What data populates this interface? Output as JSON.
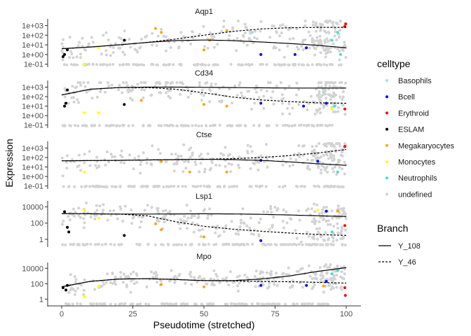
{
  "chart_data": {
    "type": "scatter",
    "xlabel": "Pseudotime (stretched)",
    "ylabel": "Expression",
    "x_ticks": [
      "0",
      "25",
      "50",
      "75",
      "100"
    ],
    "x_tick_values": [
      0,
      25,
      50,
      75,
      100
    ],
    "xlim": [
      0,
      100
    ],
    "y_scale": "log10",
    "legend_celltype": {
      "title": "celltype",
      "entries": [
        {
          "label": "Basophils",
          "color": "#add8e6"
        },
        {
          "label": "Bcell",
          "color": "#0000ff"
        },
        {
          "label": "Erythroid",
          "color": "#ff0000"
        },
        {
          "label": "ESLAM",
          "color": "#000000"
        },
        {
          "label": "Megakaryocytes",
          "color": "#ffa500"
        },
        {
          "label": "Monocytes",
          "color": "#ffff00"
        },
        {
          "label": "Neutrophils",
          "color": "#40e0d0"
        },
        {
          "label": "undefined",
          "color": "#d3d3d3"
        }
      ]
    },
    "legend_branch": {
      "title": "Branch",
      "entries": [
        {
          "label": "Y_108",
          "linestyle": "solid"
        },
        {
          "label": "Y_46",
          "linestyle": "dashed"
        }
      ]
    },
    "panels": [
      {
        "title": "Aqp1",
        "y_ticks": [
          "1e+03",
          "1e+02",
          "1e+01",
          "1e+00",
          "1e-01"
        ],
        "y_tick_values": [
          1000,
          100,
          10,
          1,
          0.1
        ],
        "ylim": [
          0.08,
          3000
        ],
        "curves": [
          {
            "branch": "Y_108",
            "x": [
              0,
              10,
              20,
              30,
              40,
              50,
              60,
              70,
              80,
              90,
              100
            ],
            "y": [
              4,
              6,
              10,
              18,
              28,
              32,
              28,
              20,
              14,
              9,
              5
            ]
          },
          {
            "branch": "Y_46",
            "x": [
              0,
              10,
              20,
              30,
              40,
              50,
              60,
              70,
              80,
              90,
              100
            ],
            "y": [
              4,
              6,
              10,
              18,
              40,
              100,
              250,
              450,
              600,
              650,
              650
            ]
          }
        ],
        "points": [
          {
            "x": 1,
            "y": 1,
            "celltype": "ESLAM"
          },
          {
            "x": 2,
            "y": 3,
            "celltype": "ESLAM"
          },
          {
            "x": 0.5,
            "y": 0.6,
            "celltype": "ESLAM"
          },
          {
            "x": 22,
            "y": 30,
            "celltype": "ESLAM"
          },
          {
            "x": 33,
            "y": 500,
            "celltype": "Megakaryocytes"
          },
          {
            "x": 35,
            "y": 200,
            "celltype": "Megakaryocytes"
          },
          {
            "x": 50,
            "y": 3,
            "celltype": "Megakaryocytes"
          },
          {
            "x": 52,
            "y": 30,
            "celltype": "Megakaryocytes"
          },
          {
            "x": 58,
            "y": 300,
            "celltype": "Megakaryocytes"
          },
          {
            "x": 13,
            "y": 5,
            "celltype": "Monocytes"
          },
          {
            "x": 8,
            "y": 0.1,
            "celltype": "Monocytes"
          },
          {
            "x": 70,
            "y": 1,
            "celltype": "Bcell"
          },
          {
            "x": 82,
            "y": 1,
            "celltype": "Bcell"
          },
          {
            "x": 86,
            "y": 5,
            "celltype": "Bcell"
          },
          {
            "x": 95,
            "y": 30,
            "celltype": "Neutrophils"
          },
          {
            "x": 98,
            "y": 1,
            "celltype": "Neutrophils"
          },
          {
            "x": 97,
            "y": 200,
            "celltype": "Neutrophils"
          },
          {
            "x": 67,
            "y": 200,
            "celltype": "Basophils"
          },
          {
            "x": 99.5,
            "y": 800,
            "celltype": "Erythroid"
          },
          {
            "x": 99.8,
            "y": 1500,
            "celltype": "Erythroid"
          }
        ]
      },
      {
        "title": "Cd34",
        "y_ticks": [
          "1e+03",
          "1e+02",
          "1e+01",
          "1e+00",
          "1e-01"
        ],
        "y_tick_values": [
          1000,
          100,
          10,
          1,
          0.1
        ],
        "ylim": [
          0.08,
          3000
        ],
        "curves": [
          {
            "branch": "Y_108",
            "x": [
              0,
              10,
              20,
              30,
              40,
              50,
              60,
              70,
              80,
              90,
              100
            ],
            "y": [
              150,
              600,
              900,
              1000,
              1000,
              950,
              900,
              850,
              800,
              800,
              800
            ]
          },
          {
            "branch": "Y_46",
            "x": [
              0,
              10,
              20,
              30,
              40,
              50,
              60,
              70,
              80,
              90,
              100
            ],
            "y": [
              150,
              600,
              900,
              900,
              600,
              250,
              90,
              45,
              30,
              22,
              20
            ]
          }
        ],
        "points": [
          {
            "x": 1,
            "y": 10,
            "celltype": "ESLAM"
          },
          {
            "x": 2,
            "y": 500,
            "celltype": "ESLAM"
          },
          {
            "x": 1.5,
            "y": 20,
            "celltype": "ESLAM"
          },
          {
            "x": 22,
            "y": 15,
            "celltype": "ESLAM"
          },
          {
            "x": 8,
            "y": 2,
            "celltype": "Monocytes"
          },
          {
            "x": 13,
            "y": 2,
            "celltype": "Monocytes"
          },
          {
            "x": 28,
            "y": 40,
            "celltype": "Megakaryocytes"
          },
          {
            "x": 50,
            "y": 15,
            "celltype": "Megakaryocytes"
          },
          {
            "x": 58,
            "y": 10,
            "celltype": "Megakaryocytes"
          },
          {
            "x": 70,
            "y": 20,
            "celltype": "Bcell"
          },
          {
            "x": 85,
            "y": 10,
            "celltype": "Bcell"
          },
          {
            "x": 93,
            "y": 20,
            "celltype": "Bcell"
          },
          {
            "x": 95,
            "y": 5,
            "celltype": "Monocytes"
          },
          {
            "x": 96,
            "y": 10,
            "celltype": "Neutrophils"
          },
          {
            "x": 99.5,
            "y": 5,
            "celltype": "Erythroid"
          },
          {
            "x": 92,
            "y": 300,
            "celltype": "Basophils"
          }
        ]
      },
      {
        "title": "Ctse",
        "y_ticks": [
          "1e+03",
          "1e+02",
          "1e+01",
          "1e+00",
          "1e-01"
        ],
        "y_tick_values": [
          1000,
          100,
          10,
          1,
          0.1
        ],
        "ylim": [
          0.08,
          3000
        ],
        "curves": [
          {
            "branch": "Y_108",
            "x": [
              0,
              10,
              20,
              30,
              40,
              50,
              60,
              70,
              80,
              90,
              100
            ],
            "y": [
              45,
              48,
              50,
              55,
              60,
              65,
              60,
              50,
              35,
              22,
              15
            ]
          },
          {
            "branch": "Y_46",
            "x": [
              0,
              10,
              20,
              30,
              40,
              50,
              60,
              70,
              80,
              90,
              100
            ],
            "y": [
              45,
              48,
              50,
              55,
              60,
              65,
              75,
              100,
              160,
              300,
              700
            ]
          }
        ],
        "points": [
          {
            "x": 8,
            "y": 3,
            "celltype": "Monocytes"
          },
          {
            "x": 35,
            "y": 40,
            "celltype": "Megakaryocytes"
          },
          {
            "x": 45,
            "y": 3,
            "celltype": "Megakaryocytes"
          },
          {
            "x": 58,
            "y": 3,
            "celltype": "Megakaryocytes"
          },
          {
            "x": 70,
            "y": 50,
            "celltype": "Bcell"
          },
          {
            "x": 90,
            "y": 40,
            "celltype": "Bcell"
          },
          {
            "x": 97,
            "y": 3,
            "celltype": "Neutrophils"
          },
          {
            "x": 99.5,
            "y": 1500,
            "celltype": "Erythroid"
          },
          {
            "x": 96,
            "y": 10,
            "celltype": "Basophils"
          }
        ]
      },
      {
        "title": "Lsp1",
        "y_ticks": [
          "10000",
          "100",
          "1"
        ],
        "y_tick_values": [
          10000,
          100,
          1
        ],
        "ylim": [
          0.2,
          30000
        ],
        "curves": [
          {
            "branch": "Y_108",
            "x": [
              0,
              10,
              20,
              30,
              40,
              50,
              60,
              70,
              80,
              90,
              100
            ],
            "y": [
              1500,
              1400,
              1300,
              1300,
              1350,
              1400,
              1350,
              1200,
              1000,
              800,
              650
            ]
          },
          {
            "branch": "Y_46",
            "x": [
              0,
              10,
              20,
              30,
              40,
              50,
              60,
              70,
              80,
              90,
              100
            ],
            "y": [
              1500,
              1400,
              1300,
              800,
              150,
              40,
              18,
              10,
              6,
              4,
              3
            ]
          }
        ],
        "points": [
          {
            "x": 1,
            "y": 2500,
            "celltype": "ESLAM"
          },
          {
            "x": 2,
            "y": 30,
            "celltype": "ESLAM"
          },
          {
            "x": 2.5,
            "y": 8,
            "celltype": "ESLAM"
          },
          {
            "x": 22,
            "y": 3,
            "celltype": "ESLAM"
          },
          {
            "x": 8,
            "y": 4000,
            "celltype": "Monocytes"
          },
          {
            "x": 13,
            "y": 400,
            "celltype": "Monocytes"
          },
          {
            "x": 33,
            "y": 80,
            "celltype": "Megakaryocytes"
          },
          {
            "x": 35,
            "y": 15,
            "celltype": "Megakaryocytes"
          },
          {
            "x": 50,
            "y": 2,
            "celltype": "Megakaryocytes"
          },
          {
            "x": 70,
            "y": 0.7,
            "celltype": "Bcell"
          },
          {
            "x": 90,
            "y": 4000,
            "celltype": "Monocytes"
          },
          {
            "x": 93,
            "y": 3000,
            "celltype": "Bcell"
          },
          {
            "x": 97,
            "y": 3000,
            "celltype": "Megakaryocytes"
          },
          {
            "x": 99.5,
            "y": 50,
            "celltype": "Erythroid"
          },
          {
            "x": 95,
            "y": 8,
            "celltype": "Neutrophils"
          }
        ]
      },
      {
        "title": "Mpo",
        "y_ticks": [
          "10000",
          "100",
          "1"
        ],
        "y_tick_values": [
          10000,
          100,
          1
        ],
        "ylim": [
          0.2,
          30000
        ],
        "curves": [
          {
            "branch": "Y_108",
            "x": [
              0,
              10,
              20,
              30,
              40,
              50,
              60,
              70,
              80,
              90,
              100
            ],
            "y": [
              40,
              200,
              400,
              450,
              350,
              250,
              250,
              400,
              1000,
              4000,
              12000
            ]
          },
          {
            "branch": "Y_46",
            "x": [
              0,
              10,
              20,
              30,
              40,
              50,
              60,
              70,
              80,
              90,
              100
            ],
            "y": [
              40,
              200,
              400,
              450,
              350,
              250,
              230,
              200,
              180,
              150,
              120
            ]
          }
        ],
        "points": [
          {
            "x": 0.5,
            "y": 30,
            "celltype": "ESLAM"
          },
          {
            "x": 1.5,
            "y": 15,
            "celltype": "ESLAM"
          },
          {
            "x": 2,
            "y": 60,
            "celltype": "ESLAM"
          },
          {
            "x": 8,
            "y": 2,
            "celltype": "Monocytes"
          },
          {
            "x": 13,
            "y": 50,
            "celltype": "Monocytes"
          },
          {
            "x": 35,
            "y": 80,
            "celltype": "Megakaryocytes"
          },
          {
            "x": 50,
            "y": 40,
            "celltype": "Megakaryocytes"
          },
          {
            "x": 70,
            "y": 60,
            "celltype": "Bcell"
          },
          {
            "x": 86,
            "y": 60,
            "celltype": "Bcell"
          },
          {
            "x": 93,
            "y": 200,
            "celltype": "Bcell"
          },
          {
            "x": 92,
            "y": 50,
            "celltype": "Megakaryocytes"
          },
          {
            "x": 95,
            "y": 2000,
            "celltype": "Neutrophils"
          },
          {
            "x": 97,
            "y": 5000,
            "celltype": "Neutrophils"
          },
          {
            "x": 99.5,
            "y": 30,
            "celltype": "Erythroid"
          },
          {
            "x": 99.7,
            "y": 3,
            "celltype": "Erythroid"
          }
        ]
      }
    ]
  }
}
